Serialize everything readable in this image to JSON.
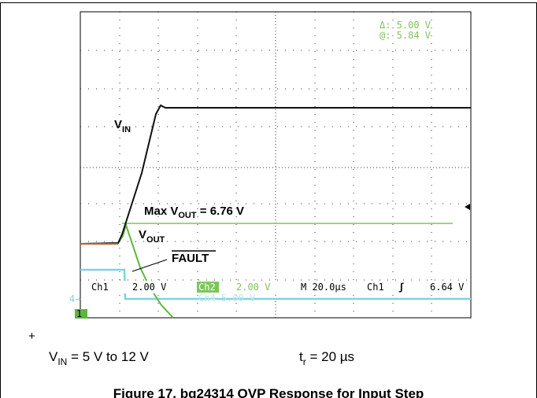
{
  "scope": {
    "readout": {
      "delta": "Δ: 5.00 V",
      "at": "@: 5.84 V"
    },
    "labels": {
      "vin": {
        "main": "V",
        "sub": "IN"
      },
      "vout": {
        "main": "V",
        "sub": "OUT"
      },
      "max": {
        "main": "Max V",
        "sub": "OUT",
        "rest": " = 6.76 V"
      },
      "fault": "FAULT"
    },
    "status": {
      "ch1": "Ch1",
      "ch1_scale": "2.00 V",
      "ch2": "Ch2",
      "ch2_scale": "2.00 V",
      "time": "M 20.0µs",
      "trig_ch": "Ch1",
      "trig_slope": "ʃ",
      "trig_level": "6.64 V"
    },
    "ch4": "Ch4  5.00 V",
    "ch4_marker": "4→",
    "ch1_marker": "1"
  },
  "caption": {
    "plus": "+",
    "vin": {
      "main": "V",
      "sub": "IN",
      "rest": " = 5 V to 12 V"
    },
    "tr": {
      "main": "t",
      "sub": "r",
      "rest": " = 20 µs"
    },
    "title": "Figure 17. bq24314 OVP Response for Input Step"
  }
}
